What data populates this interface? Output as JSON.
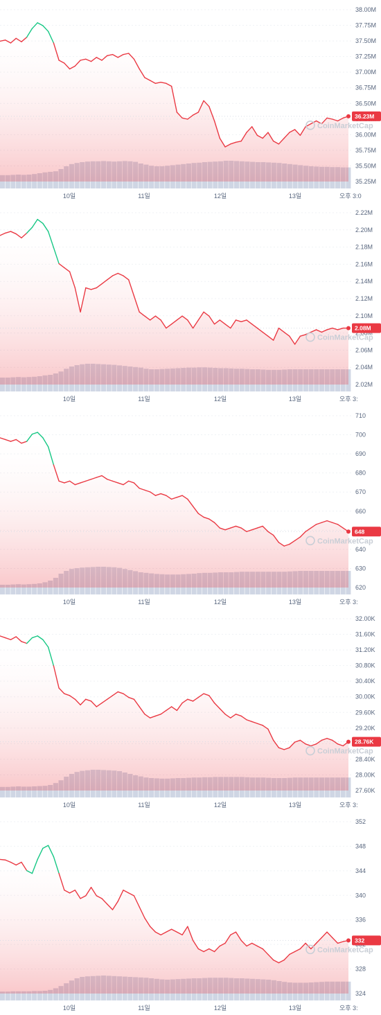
{
  "watermark": "CoinMarketCap",
  "colors": {
    "down": "#ea3943",
    "up": "#16c784",
    "volume": "#cfd6e4",
    "grid": "#eff2f5",
    "badge": "#ea3943"
  },
  "chart_data": [
    {
      "type": "line",
      "xlabel": "",
      "ylabel": "",
      "x_ticks": [
        "10일",
        "11일",
        "12일",
        "13일",
        "오후 3:0"
      ],
      "y_ticks": [
        "38.00M",
        "37.75M",
        "37.50M",
        "37.25M",
        "37.00M",
        "36.75M",
        "36.50M",
        "36.25M",
        "36.00M",
        "35.75M",
        "35.50M",
        "35.25M"
      ],
      "ylim": [
        35.1,
        38.1
      ],
      "current_label": "36.23M",
      "current_value": 36.23,
      "grid": true,
      "series": [
        {
          "values": [
            37.53,
            37.55,
            37.5,
            37.58,
            37.52,
            37.6,
            37.75,
            37.85,
            37.8,
            37.7,
            37.5,
            37.2,
            37.15,
            37.05,
            37.1,
            37.2,
            37.22,
            37.18,
            37.25,
            37.2,
            37.28,
            37.3,
            37.25,
            37.3,
            37.32,
            37.22,
            37.05,
            36.9,
            36.85,
            36.8,
            36.82,
            36.8,
            36.75,
            36.3,
            36.2,
            36.18,
            36.25,
            36.3,
            36.5,
            36.4,
            36.15,
            35.85,
            35.7,
            35.75,
            35.78,
            35.8,
            35.95,
            36.05,
            35.9,
            35.85,
            35.95,
            35.8,
            35.75,
            35.85,
            35.95,
            36.0,
            35.9,
            36.05,
            36.1,
            36.15,
            36.1,
            36.2,
            36.18,
            36.15,
            36.2,
            36.23
          ]
        }
      ],
      "volume": [
        0.48,
        0.48,
        0.49,
        0.5,
        0.49,
        0.5,
        0.52,
        0.55,
        0.58,
        0.6,
        0.62,
        0.7,
        0.8,
        0.88,
        0.92,
        0.95,
        0.97,
        0.98,
        0.98,
        0.99,
        0.98,
        0.97,
        0.98,
        0.99,
        0.98,
        0.96,
        0.9,
        0.86,
        0.82,
        0.8,
        0.8,
        0.82,
        0.84,
        0.86,
        0.88,
        0.9,
        0.92,
        0.93,
        0.95,
        0.96,
        0.97,
        0.98,
        1.0,
        1.0,
        0.99,
        0.98,
        0.97,
        0.96,
        0.95,
        0.95,
        0.94,
        0.93,
        0.92,
        0.9,
        0.88,
        0.86,
        0.84,
        0.82,
        0.8,
        0.79,
        0.78,
        0.78,
        0.77,
        0.77,
        0.76,
        0.76
      ]
    },
    {
      "type": "line",
      "xlabel": "",
      "ylabel": "",
      "x_ticks": [
        "10일",
        "11일",
        "12일",
        "13일",
        "오후 3:"
      ],
      "y_ticks": [
        "2.22M",
        "2.20M",
        "2.18M",
        "2.16M",
        "2.14M",
        "2.12M",
        "2.10M",
        "2.08M",
        "2.06M",
        "2.04M",
        "2.02M"
      ],
      "ylim": [
        2.01,
        2.225
      ],
      "current_label": "2.08M",
      "current_value": 2.08,
      "grid": true,
      "series": [
        {
          "values": [
            2.195,
            2.198,
            2.2,
            2.197,
            2.192,
            2.198,
            2.205,
            2.215,
            2.21,
            2.2,
            2.18,
            2.16,
            2.155,
            2.15,
            2.13,
            2.1,
            2.13,
            2.128,
            2.13,
            2.135,
            2.14,
            2.145,
            2.148,
            2.145,
            2.14,
            2.12,
            2.1,
            2.095,
            2.09,
            2.095,
            2.09,
            2.08,
            2.085,
            2.09,
            2.095,
            2.09,
            2.08,
            2.09,
            2.1,
            2.095,
            2.085,
            2.09,
            2.085,
            2.08,
            2.09,
            2.088,
            2.09,
            2.085,
            2.08,
            2.075,
            2.07,
            2.065,
            2.08,
            2.075,
            2.07,
            2.06,
            2.07,
            2.072,
            2.075,
            2.078,
            2.075,
            2.078,
            2.08,
            2.078,
            2.08,
            2.08
          ]
        }
      ],
      "volume": [
        0.5,
        0.5,
        0.51,
        0.52,
        0.51,
        0.52,
        0.53,
        0.55,
        0.58,
        0.6,
        0.65,
        0.72,
        0.82,
        0.9,
        0.95,
        0.98,
        1.0,
        1.0,
        0.99,
        0.98,
        0.97,
        0.96,
        0.94,
        0.92,
        0.9,
        0.88,
        0.86,
        0.82,
        0.8,
        0.8,
        0.81,
        0.82,
        0.83,
        0.84,
        0.85,
        0.86,
        0.86,
        0.87,
        0.87,
        0.86,
        0.85,
        0.84,
        0.84,
        0.83,
        0.82,
        0.82,
        0.81,
        0.8,
        0.8,
        0.79,
        0.78,
        0.78,
        0.78,
        0.79,
        0.8,
        0.8,
        0.8,
        0.8,
        0.8,
        0.8,
        0.8,
        0.8,
        0.8,
        0.8,
        0.8,
        0.8
      ]
    },
    {
      "type": "line",
      "xlabel": "",
      "ylabel": "",
      "x_ticks": [
        "10일",
        "11일",
        "12일",
        "13일",
        "오후 3:"
      ],
      "y_ticks": [
        "710",
        "700",
        "690",
        "680",
        "670",
        "660",
        "650",
        "640",
        "630",
        "620"
      ],
      "ylim": [
        617,
        713
      ],
      "current_label": "648",
      "current_value": 648,
      "grid": true,
      "series": [
        {
          "values": [
            700,
            699,
            698,
            699,
            697,
            698,
            702,
            703,
            700,
            695,
            685,
            676,
            675,
            676,
            674,
            675,
            676,
            677,
            678,
            679,
            677,
            676,
            675,
            674,
            676,
            675,
            672,
            671,
            670,
            668,
            669,
            668,
            666,
            667,
            668,
            666,
            662,
            658,
            656,
            655,
            653,
            650,
            649,
            650,
            651,
            650,
            648,
            649,
            650,
            651,
            648,
            646,
            642,
            640,
            641,
            643,
            645,
            648,
            650,
            652,
            653,
            654,
            653,
            652,
            650,
            648
          ]
        }
      ],
      "volume": [
        0.35,
        0.35,
        0.36,
        0.37,
        0.36,
        0.37,
        0.38,
        0.4,
        0.44,
        0.5,
        0.6,
        0.75,
        0.85,
        0.92,
        0.95,
        0.97,
        0.98,
        0.99,
        1.0,
        1.0,
        0.99,
        0.98,
        0.96,
        0.92,
        0.88,
        0.84,
        0.8,
        0.78,
        0.76,
        0.74,
        0.73,
        0.72,
        0.72,
        0.72,
        0.73,
        0.74,
        0.75,
        0.77,
        0.78,
        0.78,
        0.79,
        0.8,
        0.8,
        0.8,
        0.81,
        0.82,
        0.82,
        0.82,
        0.82,
        0.82,
        0.82,
        0.82,
        0.82,
        0.82,
        0.83,
        0.84,
        0.85,
        0.85,
        0.85,
        0.85,
        0.85,
        0.85,
        0.85,
        0.85,
        0.85,
        0.85
      ]
    },
    {
      "type": "line",
      "xlabel": "",
      "ylabel": "",
      "x_ticks": [
        "10일",
        "11일",
        "12일",
        "13일",
        "오후 3:"
      ],
      "y_ticks": [
        "32.00K",
        "31.60K",
        "31.20K",
        "30.80K",
        "30.40K",
        "30.00K",
        "29.60K",
        "29.20K",
        "28.80K",
        "28.40K",
        "28.00K",
        "27.60K"
      ],
      "ylim": [
        27.45,
        32.1
      ],
      "current_label": "28.76K",
      "current_value": 28.76,
      "grid": true,
      "series": [
        {
          "values": [
            31.6,
            31.55,
            31.5,
            31.58,
            31.45,
            31.4,
            31.55,
            31.6,
            31.5,
            31.3,
            30.8,
            30.2,
            30.05,
            30.0,
            29.9,
            29.75,
            29.9,
            29.85,
            29.7,
            29.8,
            29.9,
            30.0,
            30.1,
            30.05,
            29.95,
            29.9,
            29.7,
            29.5,
            29.4,
            29.45,
            29.5,
            29.6,
            29.7,
            29.6,
            29.8,
            29.9,
            29.85,
            29.95,
            30.05,
            30.0,
            29.8,
            29.65,
            29.5,
            29.4,
            29.5,
            29.45,
            29.35,
            29.3,
            29.25,
            29.2,
            29.1,
            28.8,
            28.6,
            28.55,
            28.6,
            28.75,
            28.8,
            28.7,
            28.65,
            28.7,
            28.8,
            28.85,
            28.8,
            28.7,
            28.65,
            28.76
          ]
        }
      ],
      "volume": [
        0.38,
        0.38,
        0.39,
        0.4,
        0.39,
        0.39,
        0.4,
        0.41,
        0.42,
        0.45,
        0.52,
        0.62,
        0.75,
        0.85,
        0.92,
        0.96,
        0.98,
        1.0,
        1.0,
        0.99,
        0.98,
        0.97,
        0.95,
        0.9,
        0.85,
        0.8,
        0.76,
        0.72,
        0.7,
        0.69,
        0.68,
        0.68,
        0.69,
        0.7,
        0.7,
        0.71,
        0.72,
        0.72,
        0.73,
        0.73,
        0.74,
        0.74,
        0.74,
        0.74,
        0.74,
        0.74,
        0.73,
        0.72,
        0.72,
        0.72,
        0.71,
        0.7,
        0.7,
        0.7,
        0.71,
        0.72,
        0.72,
        0.72,
        0.72,
        0.72,
        0.72,
        0.72,
        0.72,
        0.72,
        0.72,
        0.72
      ]
    },
    {
      "type": "line",
      "xlabel": "",
      "ylabel": "",
      "x_ticks": [
        "10일",
        "11일",
        "12일",
        "13일",
        "오후 3:"
      ],
      "y_ticks": [
        "352",
        "348",
        "344",
        "340",
        "336",
        "332",
        "328",
        "324"
      ],
      "ylim": [
        322.5,
        353.5
      ],
      "current_label": "332",
      "current_value": 332,
      "grid": true,
      "series": [
        {
          "values": [
            346.5,
            346.4,
            346.0,
            345.5,
            346.0,
            344.5,
            344.0,
            346.5,
            348.5,
            349.0,
            347.0,
            344.0,
            341.0,
            340.5,
            341.0,
            339.5,
            340.0,
            341.5,
            340.0,
            339.5,
            338.5,
            337.5,
            339.0,
            341.0,
            340.5,
            340.0,
            338.0,
            336.0,
            334.5,
            333.5,
            333.0,
            333.5,
            334.0,
            333.5,
            333.0,
            334.5,
            332.0,
            330.5,
            330.0,
            330.5,
            330.0,
            331.0,
            331.5,
            333.0,
            333.5,
            332.0,
            331.0,
            331.5,
            331.0,
            330.5,
            329.5,
            328.5,
            328.0,
            328.5,
            329.5,
            330.0,
            330.5,
            331.5,
            330.5,
            331.5,
            332.5,
            333.5,
            332.5,
            331.5,
            331.8,
            332.0
          ]
        }
      ],
      "volume": [
        0.32,
        0.32,
        0.33,
        0.33,
        0.33,
        0.33,
        0.34,
        0.34,
        0.35,
        0.38,
        0.44,
        0.52,
        0.62,
        0.72,
        0.8,
        0.85,
        0.87,
        0.88,
        0.89,
        0.9,
        0.89,
        0.88,
        0.87,
        0.86,
        0.85,
        0.84,
        0.83,
        0.82,
        0.8,
        0.78,
        0.76,
        0.75,
        0.76,
        0.77,
        0.78,
        0.79,
        0.8,
        0.8,
        0.81,
        0.82,
        0.82,
        0.82,
        0.82,
        0.81,
        0.8,
        0.8,
        0.79,
        0.78,
        0.77,
        0.76,
        0.75,
        0.73,
        0.7,
        0.67,
        0.65,
        0.64,
        0.64,
        0.64,
        0.65,
        0.66,
        0.67,
        0.68,
        0.68,
        0.68,
        0.68,
        0.68
      ]
    }
  ]
}
